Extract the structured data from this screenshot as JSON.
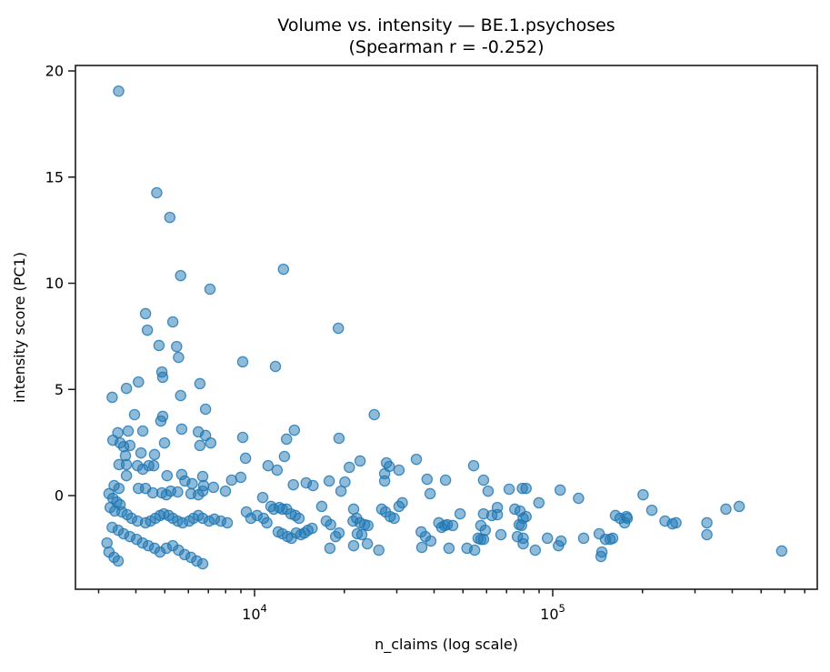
{
  "figure": {
    "background": "#ffffff"
  },
  "chart_data": {
    "type": "scatter",
    "title": "Volume vs. intensity — BE.1.psychoses",
    "subtitle": "(Spearman r = -0.252)",
    "xlabel": "n_claims (log scale)",
    "ylabel": "intensity score (PC1)",
    "x_scale": "log",
    "grid": false,
    "legend": "none",
    "spearman_r": -0.252,
    "xlim": [
      2510,
      771000
    ],
    "ylim": [
      -4.41,
      20.26
    ],
    "x_ticks": [
      {
        "base": "10",
        "exp": "4",
        "value": 10000
      },
      {
        "base": "10",
        "exp": "5",
        "value": 100000
      }
    ],
    "y_ticks": [
      0,
      5,
      10,
      15,
      20
    ],
    "marker": {
      "color": "#1f77b4",
      "fill_opacity": 0.5,
      "stroke_opacity": 0.8,
      "radius": 5.6
    },
    "points": [
      [
        3500,
        19.05
      ],
      [
        4700,
        14.26
      ],
      [
        5200,
        13.1
      ],
      [
        5650,
        10.36
      ],
      [
        12500,
        10.66
      ],
      [
        7090,
        9.72
      ],
      [
        4310,
        8.57
      ],
      [
        5320,
        8.18
      ],
      [
        4370,
        7.79
      ],
      [
        19100,
        7.88
      ],
      [
        4780,
        7.07
      ],
      [
        5480,
        7.02
      ],
      [
        5560,
        6.51
      ],
      [
        9130,
        6.3
      ],
      [
        11750,
        6.08
      ],
      [
        4890,
        5.82
      ],
      [
        4920,
        5.57
      ],
      [
        6560,
        5.27
      ],
      [
        4080,
        5.35
      ],
      [
        3720,
        5.05
      ],
      [
        3330,
        4.63
      ],
      [
        5650,
        4.71
      ],
      [
        6850,
        4.07
      ],
      [
        25200,
        3.81
      ],
      [
        3960,
        3.81
      ],
      [
        4920,
        3.73
      ],
      [
        4850,
        3.51
      ],
      [
        5700,
        3.13
      ],
      [
        3480,
        2.96
      ],
      [
        3770,
        3.04
      ],
      [
        4220,
        3.04
      ],
      [
        6480,
        3.0
      ],
      [
        6850,
        2.83
      ],
      [
        3350,
        2.61
      ],
      [
        3540,
        2.48
      ],
      [
        3640,
        2.31
      ],
      [
        3820,
        2.36
      ],
      [
        4990,
        2.48
      ],
      [
        6560,
        2.36
      ],
      [
        7130,
        2.48
      ],
      [
        9130,
        2.74
      ],
      [
        9330,
        1.76
      ],
      [
        3690,
        1.88
      ],
      [
        4160,
        2.01
      ],
      [
        4620,
        1.93
      ],
      [
        3510,
        1.46
      ],
      [
        3720,
        1.46
      ],
      [
        4050,
        1.41
      ],
      [
        4220,
        1.24
      ],
      [
        4420,
        1.41
      ],
      [
        4590,
        1.41
      ],
      [
        3720,
        0.94
      ],
      [
        5090,
        0.94
      ],
      [
        5700,
        0.99
      ],
      [
        6700,
        0.9
      ],
      [
        5840,
        0.69
      ],
      [
        6180,
        0.56
      ],
      [
        6750,
        0.47
      ],
      [
        7280,
        0.39
      ],
      [
        7990,
        0.21
      ],
      [
        8380,
        0.73
      ],
      [
        8990,
        0.86
      ],
      [
        3380,
        0.47
      ],
      [
        3510,
        0.34
      ],
      [
        4080,
        0.34
      ],
      [
        4310,
        0.34
      ],
      [
        4560,
        0.13
      ],
      [
        4890,
        0.13
      ],
      [
        5060,
        0.04
      ],
      [
        5230,
        0.21
      ],
      [
        5520,
        0.17
      ],
      [
        6120,
        0.09
      ],
      [
        6480,
        0.04
      ],
      [
        6700,
        0.21
      ],
      [
        3250,
        0.09
      ],
      [
        3350,
        -0.13
      ],
      [
        3450,
        -0.3
      ],
      [
        3540,
        -0.43
      ],
      [
        3280,
        -0.56
      ],
      [
        3400,
        -0.73
      ],
      [
        3590,
        -0.77
      ],
      [
        3740,
        -0.9
      ],
      [
        3870,
        -1.07
      ],
      [
        4050,
        -1.2
      ],
      [
        4310,
        -1.28
      ],
      [
        4480,
        -1.2
      ],
      [
        4650,
        -1.07
      ],
      [
        4820,
        -0.94
      ],
      [
        4960,
        -0.86
      ],
      [
        5150,
        -0.94
      ],
      [
        5320,
        -1.07
      ],
      [
        5520,
        -1.2
      ],
      [
        5740,
        -1.28
      ],
      [
        6040,
        -1.2
      ],
      [
        6240,
        -1.07
      ],
      [
        6480,
        -0.94
      ],
      [
        6700,
        -1.07
      ],
      [
        7040,
        -1.2
      ],
      [
        7330,
        -1.11
      ],
      [
        7700,
        -1.2
      ],
      [
        8100,
        -1.28
      ],
      [
        3330,
        -1.5
      ],
      [
        3490,
        -1.63
      ],
      [
        3640,
        -1.8
      ],
      [
        3820,
        -1.93
      ],
      [
        4020,
        -2.06
      ],
      [
        4210,
        -2.23
      ],
      [
        4400,
        -2.36
      ],
      [
        4620,
        -2.48
      ],
      [
        4820,
        -2.66
      ],
      [
        5060,
        -2.48
      ],
      [
        5320,
        -2.36
      ],
      [
        5560,
        -2.57
      ],
      [
        5830,
        -2.78
      ],
      [
        6120,
        -2.91
      ],
      [
        6400,
        -3.08
      ],
      [
        6700,
        -3.21
      ],
      [
        3200,
        -2.23
      ],
      [
        3250,
        -2.66
      ],
      [
        3380,
        -2.91
      ],
      [
        3490,
        -3.08
      ],
      [
        9390,
        -0.77
      ],
      [
        9720,
        -1.07
      ],
      [
        10200,
        -0.94
      ],
      [
        13600,
        3.08
      ],
      [
        12800,
        2.66
      ],
      [
        19200,
        2.7
      ],
      [
        12600,
        1.84
      ],
      [
        11100,
        1.41
      ],
      [
        11900,
        1.2
      ],
      [
        22600,
        1.63
      ],
      [
        27700,
        1.54
      ],
      [
        28300,
        1.37
      ],
      [
        27300,
        1.03
      ],
      [
        30500,
        1.2
      ],
      [
        34900,
        1.71
      ],
      [
        20800,
        1.33
      ],
      [
        13500,
        0.51
      ],
      [
        14900,
        0.6
      ],
      [
        15700,
        0.47
      ],
      [
        17800,
        0.69
      ],
      [
        20100,
        0.64
      ],
      [
        19500,
        0.21
      ],
      [
        27300,
        0.69
      ],
      [
        37900,
        0.77
      ],
      [
        38800,
        0.09
      ],
      [
        10650,
        -0.09
      ],
      [
        11350,
        -0.51
      ],
      [
        11600,
        -0.64
      ],
      [
        12100,
        -0.56
      ],
      [
        12400,
        -0.64
      ],
      [
        12800,
        -0.64
      ],
      [
        13240,
        -0.86
      ],
      [
        13700,
        -0.94
      ],
      [
        14100,
        -1.07
      ],
      [
        10720,
        -1.07
      ],
      [
        11000,
        -1.28
      ],
      [
        12000,
        -1.71
      ],
      [
        12400,
        -1.8
      ],
      [
        12900,
        -1.93
      ],
      [
        13300,
        -2.01
      ],
      [
        13800,
        -1.76
      ],
      [
        14300,
        -1.84
      ],
      [
        14700,
        -1.76
      ],
      [
        15100,
        -1.63
      ],
      [
        15600,
        -1.54
      ],
      [
        16800,
        -0.51
      ],
      [
        17400,
        -1.2
      ],
      [
        18000,
        -1.37
      ],
      [
        18700,
        -1.93
      ],
      [
        17900,
        -2.48
      ],
      [
        19200,
        -1.76
      ],
      [
        21500,
        -0.64
      ],
      [
        22000,
        -1.07
      ],
      [
        21400,
        -1.2
      ],
      [
        22600,
        -1.28
      ],
      [
        23400,
        -1.37
      ],
      [
        24000,
        -1.41
      ],
      [
        22100,
        -1.8
      ],
      [
        22900,
        -1.84
      ],
      [
        21500,
        -2.36
      ],
      [
        23900,
        -2.27
      ],
      [
        26100,
        -2.57
      ],
      [
        26700,
        -0.64
      ],
      [
        27500,
        -0.77
      ],
      [
        28500,
        -0.99
      ],
      [
        29400,
        -1.07
      ],
      [
        30500,
        -0.51
      ],
      [
        31300,
        -0.34
      ],
      [
        36200,
        -1.71
      ],
      [
        37400,
        -1.93
      ],
      [
        36400,
        -2.44
      ],
      [
        39000,
        -2.14
      ],
      [
        41500,
        -1.28
      ],
      [
        42400,
        -1.5
      ],
      [
        54300,
        1.41
      ],
      [
        43700,
        0.73
      ],
      [
        58600,
        0.73
      ],
      [
        60700,
        0.21
      ],
      [
        71450,
        0.3
      ],
      [
        79100,
        0.34
      ],
      [
        81400,
        0.34
      ],
      [
        105900,
        0.26
      ],
      [
        122100,
        -0.13
      ],
      [
        89900,
        -0.34
      ],
      [
        48900,
        -0.86
      ],
      [
        44300,
        -1.37
      ],
      [
        43400,
        -1.41
      ],
      [
        46200,
        -1.41
      ],
      [
        58600,
        -0.86
      ],
      [
        62500,
        -0.94
      ],
      [
        65200,
        -0.56
      ],
      [
        65200,
        -0.9
      ],
      [
        74600,
        -0.64
      ],
      [
        77700,
        -0.73
      ],
      [
        79600,
        -1.07
      ],
      [
        81400,
        -0.99
      ],
      [
        77200,
        -1.37
      ],
      [
        78600,
        -1.41
      ],
      [
        57400,
        -1.41
      ],
      [
        59400,
        -1.63
      ],
      [
        56200,
        -2.01
      ],
      [
        57400,
        -2.06
      ],
      [
        58600,
        -2.06
      ],
      [
        67000,
        -1.84
      ],
      [
        76100,
        -1.93
      ],
      [
        79600,
        -2.01
      ],
      [
        79600,
        -2.27
      ],
      [
        87400,
        -2.57
      ],
      [
        96000,
        -2.01
      ],
      [
        104500,
        -2.36
      ],
      [
        106600,
        -2.14
      ],
      [
        127000,
        -2.01
      ],
      [
        143200,
        -1.8
      ],
      [
        146200,
        -2.66
      ],
      [
        145200,
        -2.87
      ],
      [
        150300,
        -2.06
      ],
      [
        158900,
        -2.01
      ],
      [
        155700,
        -2.06
      ],
      [
        162300,
        -0.94
      ],
      [
        168100,
        -1.07
      ],
      [
        174200,
        -1.28
      ],
      [
        176700,
        -0.99
      ],
      [
        51600,
        -2.48
      ],
      [
        54700,
        -2.57
      ],
      [
        44900,
        -2.48
      ],
      [
        201000,
        0.04
      ],
      [
        215000,
        -0.69
      ],
      [
        177800,
        -1.07
      ],
      [
        238000,
        -1.2
      ],
      [
        252000,
        -1.33
      ],
      [
        259000,
        -1.28
      ],
      [
        329000,
        -1.28
      ],
      [
        329000,
        -1.84
      ],
      [
        381000,
        -0.64
      ],
      [
        422000,
        -0.51
      ],
      [
        586000,
        -2.61
      ]
    ]
  }
}
